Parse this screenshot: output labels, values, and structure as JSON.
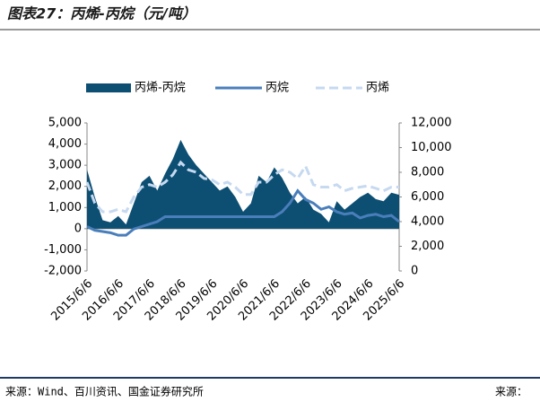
{
  "chart_data": {
    "type": "area-line",
    "title": "图表27：丙烯-丙烷（元/吨）",
    "categories": [
      "2015/6/6",
      null,
      null,
      null,
      "2016/6/6",
      null,
      null,
      null,
      "2017/6/6",
      null,
      null,
      null,
      "2018/6/6",
      null,
      null,
      null,
      "2019/6/6",
      null,
      null,
      null,
      "2020/6/6",
      null,
      null,
      null,
      "2021/6/6",
      null,
      null,
      null,
      "2022/6/6",
      null,
      null,
      null,
      "2023/6/6",
      null,
      null,
      null,
      "2024/6/6",
      null,
      null,
      null,
      "2025/6/6"
    ],
    "series": [
      {
        "name": "丙烯-丙烷",
        "kind": "area",
        "color": "#0d4f73",
        "values": [
          2800,
          1500,
          400,
          300,
          600,
          200,
          1200,
          2200,
          2500,
          1800,
          2600,
          3300,
          4200,
          3500,
          3000,
          2600,
          2200,
          1800,
          2000,
          1500,
          800,
          1200,
          2500,
          2200,
          2900,
          2400,
          1700,
          1200,
          1500,
          900,
          700,
          300,
          1300,
          900,
          1200,
          1500,
          1700,
          1400,
          1300,
          1700,
          1600
        ]
      },
      {
        "name": "丙烷",
        "kind": "line",
        "axis": "y2",
        "color": "#4a7ebb",
        "values": [
          3600,
          3300,
          3200,
          3100,
          2900,
          2900,
          3400,
          3600,
          3800,
          4000,
          4400,
          4400,
          4400,
          4400,
          4400,
          4400,
          4400,
          4400,
          4400,
          4400,
          4400,
          4400,
          4400,
          4400,
          4400,
          4800,
          5500,
          6500,
          5800,
          5500,
          5000,
          5200,
          4800,
          4600,
          4700,
          4300,
          4500,
          4600,
          4400,
          4500,
          4000
        ]
      },
      {
        "name": "丙烯",
        "kind": "dashed",
        "axis": "y2",
        "color": "#c6d9f0",
        "values": [
          7200,
          5500,
          4800,
          4800,
          5000,
          4800,
          6000,
          6800,
          7000,
          6800,
          7200,
          7800,
          8800,
          8200,
          8000,
          7500,
          7400,
          7000,
          7200,
          6800,
          6200,
          6200,
          7200,
          7200,
          7800,
          8200,
          8000,
          7500,
          8500,
          7000,
          6800,
          6800,
          7000,
          6500,
          6700,
          6800,
          6900,
          6700,
          6500,
          6800,
          6800
        ]
      }
    ],
    "ylim": [
      -2000,
      5000
    ],
    "yticks": [
      {
        "value": -2000,
        "label": "-2,000"
      },
      {
        "value": -1000,
        "label": "-1,000"
      },
      0,
      {
        "value": 1000,
        "label": "1,000"
      },
      {
        "value": 2000,
        "label": "2,000"
      },
      {
        "value": 3000,
        "label": "3,000"
      },
      {
        "value": 4000,
        "label": "4,000"
      },
      {
        "value": 5000,
        "label": "5,000"
      }
    ],
    "y2lim": [
      0,
      12000
    ],
    "y2ticks": [
      0,
      {
        "value": 2000,
        "label": "2,000"
      },
      {
        "value": 4000,
        "label": "4,000"
      },
      {
        "value": 6000,
        "label": "6,000"
      },
      {
        "value": 8000,
        "label": "8,000"
      },
      {
        "value": 10000,
        "label": "10,000"
      },
      {
        "value": 12000,
        "label": "12,000"
      }
    ],
    "grid": false
  },
  "footer": {
    "source": "来源：Wind、百川资讯、国金证券研究所",
    "source_right": "来源："
  }
}
